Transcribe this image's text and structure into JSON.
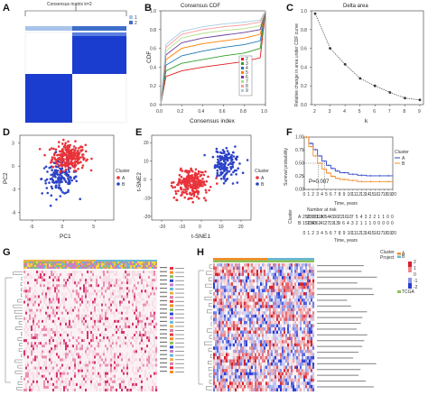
{
  "panel_labels": [
    "A",
    "B",
    "C",
    "D",
    "E",
    "F",
    "G",
    "H"
  ],
  "chart_data": [
    {
      "panel": "A",
      "type": "heatmap",
      "title": "Consensus matrix k=2",
      "legend": [
        "1",
        "2"
      ],
      "colors": {
        "cluster1": "#a7c4ea",
        "cluster2": "#3d6ec9",
        "high": "#1a3ccf",
        "low": "#ffffff"
      }
    },
    {
      "panel": "B",
      "type": "line",
      "title": "Consensus CDF",
      "xlabel": "Consensus index",
      "ylabel": "CDF",
      "xlim": [
        0,
        1
      ],
      "ylim": [
        0,
        1
      ],
      "x_ticks": [
        "0.0",
        "0.2",
        "0.4",
        "0.6",
        "0.8",
        "1.0"
      ],
      "y_ticks": [
        "0.0",
        "0.2",
        "0.4",
        "0.6",
        "0.8",
        "1.0"
      ],
      "legend": [
        "2",
        "3",
        "4",
        "5",
        "6",
        "7",
        "8",
        "9"
      ],
      "series_colors": [
        "#e31a1c",
        "#33a02c",
        "#1f78b4",
        "#ff7f00",
        "#6a3d9a",
        "#b2df8a",
        "#fb9a99",
        "#a6cee3"
      ],
      "series": [
        {
          "name": "2",
          "x": [
            0,
            0.05,
            0.2,
            0.4,
            0.6,
            0.8,
            0.95,
            1
          ],
          "values": [
            0,
            0.3,
            0.36,
            0.4,
            0.43,
            0.46,
            0.5,
            1
          ]
        },
        {
          "name": "3",
          "x": [
            0,
            0.05,
            0.2,
            0.4,
            0.6,
            0.8,
            0.95,
            1
          ],
          "values": [
            0,
            0.36,
            0.44,
            0.48,
            0.52,
            0.55,
            0.6,
            1
          ]
        },
        {
          "name": "4",
          "x": [
            0,
            0.05,
            0.2,
            0.4,
            0.6,
            0.8,
            0.95,
            1
          ],
          "values": [
            0,
            0.42,
            0.52,
            0.57,
            0.61,
            0.64,
            0.68,
            1
          ]
        },
        {
          "name": "5",
          "x": [
            0,
            0.05,
            0.2,
            0.4,
            0.6,
            0.8,
            0.95,
            1
          ],
          "values": [
            0,
            0.48,
            0.6,
            0.65,
            0.68,
            0.71,
            0.75,
            1
          ]
        },
        {
          "name": "6",
          "x": [
            0,
            0.05,
            0.2,
            0.4,
            0.6,
            0.8,
            0.95,
            1
          ],
          "values": [
            0,
            0.53,
            0.66,
            0.71,
            0.74,
            0.77,
            0.8,
            1
          ]
        },
        {
          "name": "7",
          "x": [
            0,
            0.05,
            0.2,
            0.4,
            0.6,
            0.8,
            0.95,
            1
          ],
          "values": [
            0,
            0.57,
            0.71,
            0.76,
            0.79,
            0.81,
            0.84,
            1
          ]
        },
        {
          "name": "8",
          "x": [
            0,
            0.05,
            0.2,
            0.4,
            0.6,
            0.8,
            0.95,
            1
          ],
          "values": [
            0,
            0.61,
            0.75,
            0.8,
            0.83,
            0.85,
            0.88,
            1
          ]
        },
        {
          "name": "9",
          "x": [
            0,
            0.05,
            0.2,
            0.4,
            0.6,
            0.8,
            0.95,
            1
          ],
          "values": [
            0,
            0.64,
            0.78,
            0.83,
            0.86,
            0.88,
            0.9,
            1
          ]
        }
      ]
    },
    {
      "panel": "C",
      "type": "line",
      "title": "Delta area",
      "xlabel": "k",
      "ylabel": "Relative change in area under CDF curve",
      "xlim": [
        2,
        9
      ],
      "ylim": [
        0,
        1
      ],
      "x_ticks": [
        "2",
        "3",
        "4",
        "5",
        "6",
        "7",
        "8",
        "9"
      ],
      "y_ticks": [
        "0.0",
        "0.2",
        "0.4",
        "0.6",
        "0.8",
        "1.0"
      ],
      "x": [
        2,
        3,
        4,
        5,
        6,
        7,
        8,
        9
      ],
      "values": [
        0.97,
        0.6,
        0.43,
        0.28,
        0.2,
        0.13,
        0.07,
        0.05
      ]
    },
    {
      "panel": "D",
      "type": "scatter",
      "xlabel": "PC1",
      "ylabel": "PC2",
      "xlim": [
        -7,
        8
      ],
      "ylim": [
        -7,
        4
      ],
      "x_ticks": [
        "-5",
        "0",
        "5"
      ],
      "y_ticks": [
        "3",
        "0",
        "-3",
        "-6"
      ],
      "legend_title": "Cluster",
      "legend": [
        "A",
        "B"
      ],
      "series": [
        {
          "name": "A",
          "color": "#e8333b",
          "center": [
            0.8,
            1.2
          ],
          "spread": [
            2.4,
            1.6
          ],
          "count": 260
        },
        {
          "name": "B",
          "color": "#2d43c7",
          "center": [
            -0.6,
            -1.6
          ],
          "spread": [
            2.6,
            1.9
          ],
          "count": 140
        }
      ]
    },
    {
      "panel": "E",
      "type": "scatter",
      "xlabel": "t-SNE1",
      "ylabel": "t-SNE2",
      "xlim": [
        -25,
        25
      ],
      "ylim": [
        -22,
        24
      ],
      "x_ticks": [
        "-20",
        "-10",
        "0",
        "10",
        "20"
      ],
      "y_ticks": [
        "20",
        "10",
        "0",
        "-10",
        "-20"
      ],
      "legend_title": "Cluster",
      "legend": [
        "A",
        "B"
      ],
      "series": [
        {
          "name": "A",
          "color": "#e8333b",
          "center": [
            -5,
            -2
          ],
          "spread": [
            7,
            7
          ],
          "count": 240
        },
        {
          "name": "B",
          "color": "#2d43c7",
          "center": [
            12,
            8
          ],
          "spread": [
            6,
            8
          ],
          "count": 150
        }
      ]
    },
    {
      "panel": "F",
      "type": "line",
      "subtype": "kaplan-meier",
      "xlabel": "Time, years",
      "ylabel": "Survival probability",
      "xlim": [
        0,
        20
      ],
      "ylim": [
        0,
        1
      ],
      "x_ticks": [
        "0",
        "1",
        "2",
        "3",
        "4",
        "5",
        "6",
        "7",
        "8",
        "9",
        "10",
        "11",
        "12",
        "13",
        "14",
        "15",
        "16",
        "17",
        "18",
        "19",
        "20"
      ],
      "y_ticks": [
        "0.00",
        "0.25",
        "0.50",
        "0.75",
        "1.00"
      ],
      "pvalue": "P=0.007",
      "legend_title": "Cluster",
      "legend": [
        "A",
        "B"
      ],
      "series": [
        {
          "name": "A",
          "color": "#2d43c7",
          "x": [
            0,
            1,
            2,
            3,
            4,
            5,
            6,
            7,
            8,
            10,
            12,
            14,
            16,
            18,
            20
          ],
          "values": [
            1,
            0.88,
            0.76,
            0.64,
            0.54,
            0.46,
            0.4,
            0.35,
            0.32,
            0.29,
            0.27,
            0.26,
            0.26,
            0.26,
            0.26
          ]
        },
        {
          "name": "B",
          "color": "#f28c28",
          "x": [
            0,
            1,
            2,
            3,
            4,
            5,
            6,
            7,
            8,
            10,
            12,
            14,
            16,
            18,
            20
          ],
          "values": [
            1,
            0.82,
            0.64,
            0.5,
            0.39,
            0.31,
            0.25,
            0.21,
            0.19,
            0.17,
            0.15,
            0.15,
            0.15,
            0.15,
            0.15
          ]
        }
      ],
      "risk_table": {
        "title": "Number at risk",
        "rows": [
          {
            "name": "A",
            "values": [
              "250",
              "230",
              "181",
              "119",
              "80",
              "54",
              "43",
              "30",
              "22",
              "16",
              "10",
              "7",
              "5",
              "4",
              "3",
              "2",
              "2",
              "1",
              "1",
              "0",
              "0"
            ]
          },
          {
            "name": "B",
            "values": [
              "152",
              "134",
              "93",
              "62",
              "41",
              "27",
              "19",
              "13",
              "9",
              "6",
              "4",
              "3",
              "2",
              "1",
              "1",
              "1",
              "0",
              "0",
              "0",
              "0",
              "0"
            ]
          }
        ],
        "ylabel": "Cluster"
      }
    },
    {
      "panel": "G",
      "type": "heatmap",
      "description_rows": 30,
      "colors": {
        "low": "#ffffff",
        "mid": "#f6dde6",
        "high": "#d6336c"
      }
    },
    {
      "panel": "H",
      "type": "heatmap",
      "legend_labels": [
        "Cluster",
        "Project"
      ],
      "legend_values": [
        "A",
        "B",
        "TCGA"
      ],
      "colorbar": [
        "2",
        "1",
        "0",
        "-1",
        "-2"
      ],
      "colors": {
        "low": "#2a3bd4",
        "mid": "#ffffff",
        "high": "#d61f2b"
      }
    }
  ]
}
